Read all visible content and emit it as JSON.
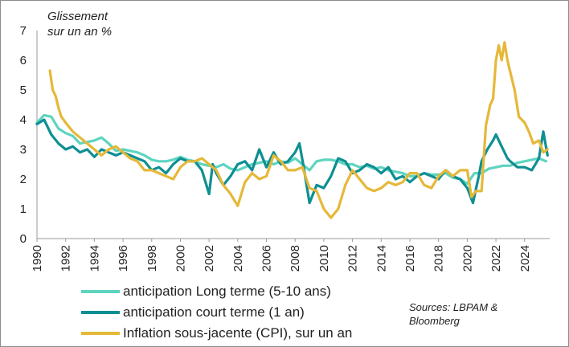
{
  "chart_data": {
    "type": "line",
    "title": "",
    "ylabel": "Glissement sur un an %",
    "ylabel_lines": [
      "Glissement",
      "sur un an %"
    ],
    "xlabel": "",
    "xlim": [
      1990,
      2025.75
    ],
    "ylim": [
      0,
      7
    ],
    "yticks": [
      "0",
      "1",
      "2",
      "3",
      "4",
      "5",
      "6",
      "7"
    ],
    "xticks": [
      "1990",
      "1992",
      "1994",
      "1996",
      "1998",
      "2000",
      "2002",
      "2004",
      "2006",
      "2008",
      "2010",
      "2012",
      "2014",
      "2016",
      "2018",
      "2020",
      "2022",
      "2024"
    ],
    "grid": false,
    "legend_position": "bottom-left",
    "series": [
      {
        "name": "anticipation Long terme (5-10 ans)",
        "color": "#5ed4bf",
        "x": [
          1990,
          1990.5,
          1991,
          1991.5,
          1992,
          1992.5,
          1993,
          1993.5,
          1994,
          1994.5,
          1995,
          1995.5,
          1996,
          1996.5,
          1997,
          1997.5,
          1998,
          1998.5,
          1999,
          1999.5,
          2000,
          2000.5,
          2001,
          2001.5,
          2002,
          2002.5,
          2003,
          2003.5,
          2004,
          2004.5,
          2005,
          2005.5,
          2006,
          2006.5,
          2007,
          2007.5,
          2008,
          2008.5,
          2009,
          2009.5,
          2010,
          2010.5,
          2011,
          2011.5,
          2012,
          2012.5,
          2013,
          2013.5,
          2014,
          2014.5,
          2015,
          2015.5,
          2016,
          2016.5,
          2017,
          2017.5,
          2018,
          2018.5,
          2019,
          2019.5,
          2020,
          2020.5,
          2021,
          2021.5,
          2022,
          2022.5,
          2023,
          2023.5,
          2024,
          2024.5,
          2025,
          2025.5
        ],
        "values": [
          3.9,
          4.15,
          4.1,
          3.7,
          3.55,
          3.45,
          3.2,
          3.25,
          3.3,
          3.4,
          3.2,
          2.95,
          3.0,
          2.95,
          2.9,
          2.8,
          2.65,
          2.6,
          2.6,
          2.65,
          2.75,
          2.65,
          2.6,
          2.5,
          2.45,
          2.4,
          2.5,
          2.35,
          2.3,
          2.4,
          2.5,
          2.55,
          2.6,
          2.5,
          2.6,
          2.55,
          2.7,
          2.5,
          2.3,
          2.6,
          2.65,
          2.65,
          2.6,
          2.5,
          2.5,
          2.4,
          2.45,
          2.35,
          2.4,
          2.3,
          2.25,
          2.2,
          2.1,
          2.1,
          2.2,
          2.15,
          2.15,
          2.2,
          2.05,
          2.0,
          1.85,
          2.2,
          2.2,
          2.35,
          2.4,
          2.45,
          2.45,
          2.55,
          2.6,
          2.65,
          2.7,
          2.6
        ]
      },
      {
        "name": "anticipation court terme (1 an)",
        "color": "#0e8f93",
        "x": [
          1990,
          1990.5,
          1991,
          1991.5,
          1992,
          1992.5,
          1993,
          1993.5,
          1994,
          1994.5,
          1995,
          1995.5,
          1996,
          1996.5,
          1997,
          1997.5,
          1998,
          1998.5,
          1999,
          1999.5,
          2000,
          2000.5,
          2001,
          2001.5,
          2002,
          2002.25,
          2002.5,
          2003,
          2003.5,
          2004,
          2004.5,
          2005,
          2005.5,
          2006,
          2006.5,
          2007,
          2007.5,
          2008,
          2008.3,
          2008.6,
          2009,
          2009.5,
          2010,
          2010.5,
          2011,
          2011.5,
          2012,
          2012.5,
          2013,
          2013.5,
          2014,
          2014.5,
          2015,
          2015.5,
          2016,
          2016.5,
          2017,
          2017.5,
          2018,
          2018.5,
          2019,
          2019.5,
          2020,
          2020.4,
          2020.8,
          2021,
          2021.4,
          2021.8,
          2022,
          2022.4,
          2022.8,
          2023,
          2023.5,
          2024,
          2024.5,
          2025,
          2025.3,
          2025.6
        ],
        "values": [
          3.85,
          4.0,
          3.5,
          3.2,
          3.0,
          3.1,
          2.9,
          3.0,
          2.75,
          3.0,
          2.9,
          2.8,
          2.9,
          2.8,
          2.7,
          2.6,
          2.3,
          2.4,
          2.2,
          2.5,
          2.7,
          2.6,
          2.6,
          2.3,
          1.5,
          2.5,
          2.2,
          1.8,
          2.1,
          2.5,
          2.6,
          2.3,
          3.0,
          2.4,
          2.9,
          2.5,
          2.6,
          2.9,
          3.2,
          2.4,
          1.2,
          1.8,
          1.7,
          2.1,
          2.7,
          2.6,
          2.2,
          2.3,
          2.5,
          2.4,
          2.2,
          2.4,
          2.0,
          2.1,
          1.9,
          2.1,
          2.2,
          2.1,
          2.0,
          2.3,
          2.1,
          2.0,
          1.7,
          1.2,
          2.1,
          2.6,
          3.0,
          3.3,
          3.5,
          3.1,
          2.7,
          2.6,
          2.4,
          2.4,
          2.3,
          2.7,
          3.6,
          2.8
        ]
      },
      {
        "name": "Inflation sous-jacente (CPI), sur un an",
        "color": "#e5b838",
        "x": [
          1990.9,
          1991.1,
          1991.3,
          1991.5,
          1991.7,
          1992,
          1992.5,
          1993,
          1993.5,
          1994,
          1994.5,
          1995,
          1995.5,
          1996,
          1996.5,
          1997,
          1997.5,
          1998,
          1998.5,
          1999,
          1999.5,
          2000,
          2000.5,
          2001,
          2001.5,
          2002,
          2002.5,
          2003,
          2003.5,
          2004,
          2004.5,
          2005,
          2005.5,
          2006,
          2006.5,
          2007,
          2007.5,
          2008,
          2008.5,
          2009,
          2009.5,
          2010,
          2010.5,
          2011,
          2011.5,
          2012,
          2012.5,
          2013,
          2013.5,
          2014,
          2014.5,
          2015,
          2015.5,
          2016,
          2016.5,
          2017,
          2017.5,
          2018,
          2018.5,
          2019,
          2019.5,
          2020,
          2020.3,
          2020.6,
          2021,
          2021.3,
          2021.6,
          2021.8,
          2022,
          2022.2,
          2022.4,
          2022.6,
          2022.8,
          2023,
          2023.3,
          2023.6,
          2024,
          2024.3,
          2024.6,
          2025,
          2025.3,
          2025.6
        ],
        "values": [
          5.65,
          5.0,
          4.8,
          4.4,
          4.1,
          3.9,
          3.6,
          3.4,
          3.2,
          3.0,
          2.8,
          3.0,
          3.1,
          2.9,
          2.7,
          2.6,
          2.3,
          2.3,
          2.2,
          2.1,
          2.0,
          2.4,
          2.6,
          2.6,
          2.7,
          2.5,
          2.3,
          1.8,
          1.5,
          1.1,
          1.9,
          2.2,
          2.0,
          2.1,
          2.8,
          2.6,
          2.3,
          2.3,
          2.4,
          1.7,
          1.6,
          1.0,
          0.7,
          1.0,
          1.8,
          2.3,
          2.0,
          1.7,
          1.6,
          1.7,
          1.9,
          1.8,
          1.9,
          2.2,
          2.2,
          1.8,
          1.7,
          2.1,
          2.3,
          2.1,
          2.3,
          2.3,
          1.4,
          1.6,
          1.6,
          3.8,
          4.5,
          4.7,
          6.0,
          6.5,
          6.0,
          6.6,
          6.0,
          5.6,
          5.0,
          4.1,
          3.9,
          3.6,
          3.2,
          3.3,
          2.9,
          3.0
        ]
      }
    ]
  },
  "sources": "Sources: LBPAM & Bloomberg"
}
